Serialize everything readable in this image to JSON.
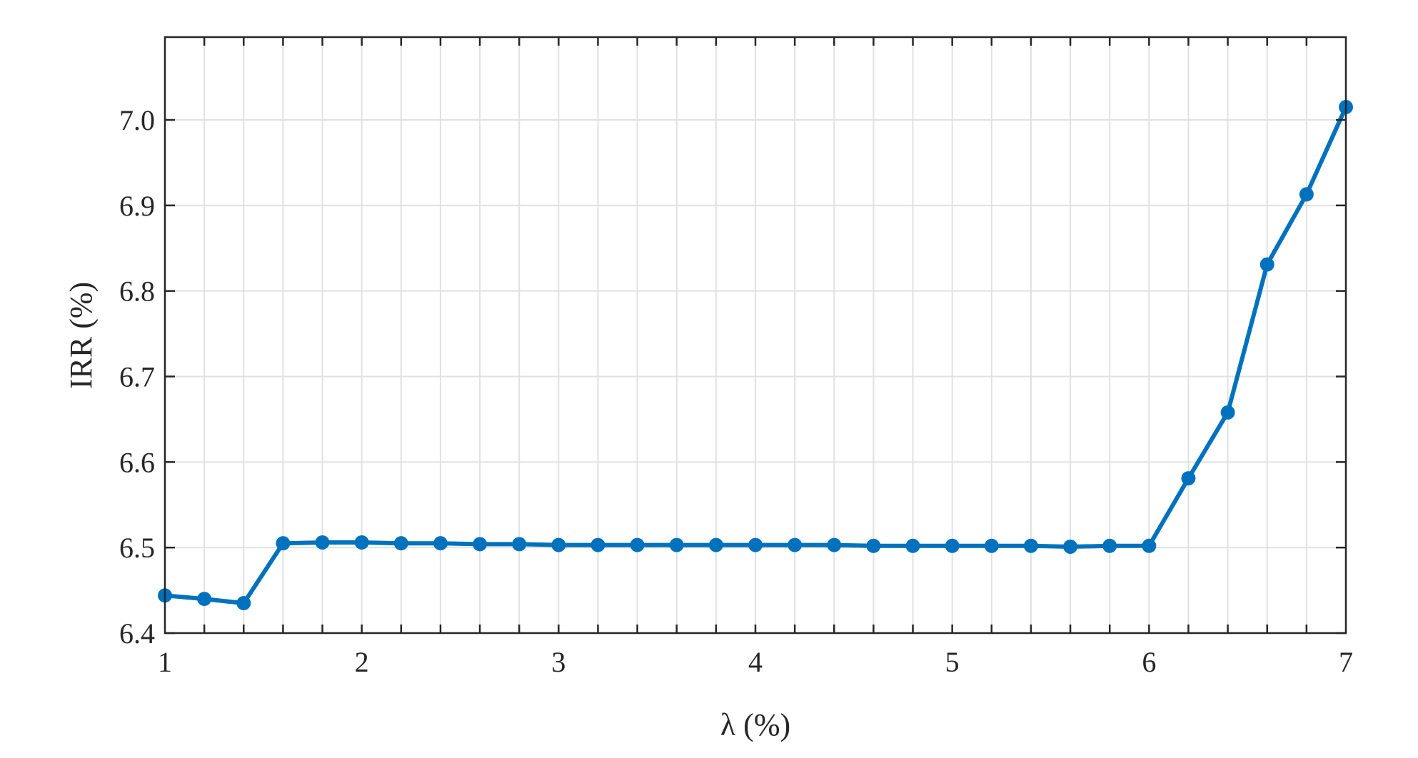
{
  "chart_data": {
    "type": "line",
    "title": "",
    "xlabel": "λ (%)",
    "ylabel": "IRR (%)",
    "xlim": [
      1,
      7
    ],
    "ylim": [
      6.4,
      7.1
    ],
    "x_ticks": [
      1,
      2,
      3,
      4,
      5,
      6,
      7
    ],
    "x_tick_labels": [
      "1",
      "2",
      "3",
      "4",
      "5",
      "6",
      "7"
    ],
    "y_ticks": [
      6.4,
      6.5,
      6.6,
      6.7,
      6.8,
      6.9,
      7.0
    ],
    "y_tick_labels": [
      "6.4",
      "6.5",
      "6.6",
      "6.7",
      "6.8",
      "6.9",
      "7.0"
    ],
    "grid": true,
    "x_minor_grid_step": 0.2,
    "line_color": "#0072bd",
    "series": [
      {
        "x": [
          1.0,
          1.2,
          1.4,
          1.6,
          1.8,
          2.0,
          2.2,
          2.4,
          2.6,
          2.8,
          3.0,
          3.2,
          3.4,
          3.6,
          3.8,
          4.0,
          4.2,
          4.4,
          4.6,
          4.8,
          5.0,
          5.2,
          5.4,
          5.6,
          5.8,
          6.0,
          6.2,
          6.4,
          6.6,
          6.8,
          7.0
        ],
        "values": [
          6.444,
          6.44,
          6.435,
          6.505,
          6.506,
          6.506,
          6.505,
          6.505,
          6.504,
          6.504,
          6.503,
          6.503,
          6.503,
          6.503,
          6.503,
          6.503,
          6.503,
          6.503,
          6.502,
          6.502,
          6.502,
          6.502,
          6.502,
          6.501,
          6.502,
          6.502,
          6.581,
          6.658,
          6.831,
          6.913,
          7.015
        ]
      }
    ]
  }
}
